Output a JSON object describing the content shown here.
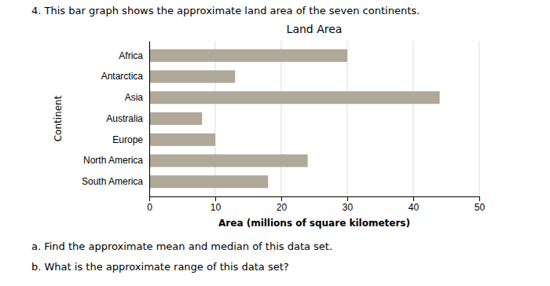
{
  "chart_data": {
    "type": "bar",
    "orientation": "horizontal",
    "title": "Land Area",
    "categories": [
      "Africa",
      "Antarctica",
      "Asia",
      "Australia",
      "Europe",
      "North America",
      "South America"
    ],
    "values": [
      30,
      13,
      44,
      8,
      10,
      24,
      18
    ],
    "color": "#b0a898",
    "xlabel": "Area (millions of square kilometers)",
    "ylabel": "Continent",
    "xlim": [
      0,
      50
    ],
    "xticks": [
      0,
      10,
      20,
      30,
      40,
      50
    ],
    "grid": true,
    "annotations": [
      "4.  This bar graph shows the approximate land area of the seven continents.",
      "a.  Find the approximate mean and median of this data set.",
      "b.  What is the approximate range of this data set?"
    ]
  }
}
